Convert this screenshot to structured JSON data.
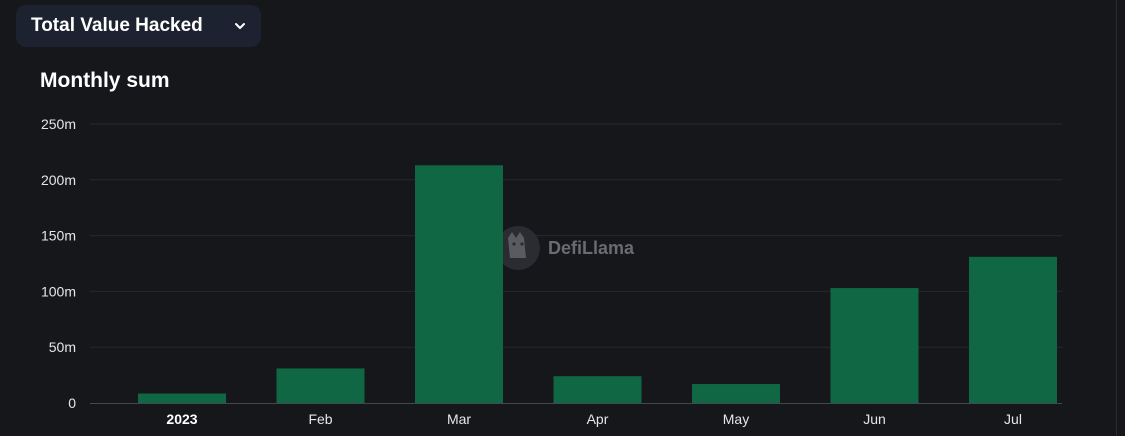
{
  "selector": {
    "label": "Total Value Hacked"
  },
  "watermark": {
    "text": "DefiLlama"
  },
  "colors": {
    "bar": "#106744",
    "grid": "#26282e",
    "axis": "#45474d",
    "background": "#16171b"
  },
  "chart_data": {
    "type": "bar",
    "title": "Monthly sum",
    "xlabel": "",
    "ylabel": "",
    "ylim": [
      0,
      250000000
    ],
    "yticks": [
      0,
      50000000,
      100000000,
      150000000,
      200000000,
      250000000
    ],
    "ytick_labels": [
      "0",
      "50m",
      "100m",
      "150m",
      "200m",
      "250m"
    ],
    "categories": [
      "2023",
      "Feb",
      "Mar",
      "Apr",
      "May",
      "Jun",
      "Jul"
    ],
    "values": [
      8500000,
      31000000,
      213000000,
      24000000,
      17000000,
      103000000,
      131000000
    ],
    "grid": true,
    "legend": "none"
  }
}
